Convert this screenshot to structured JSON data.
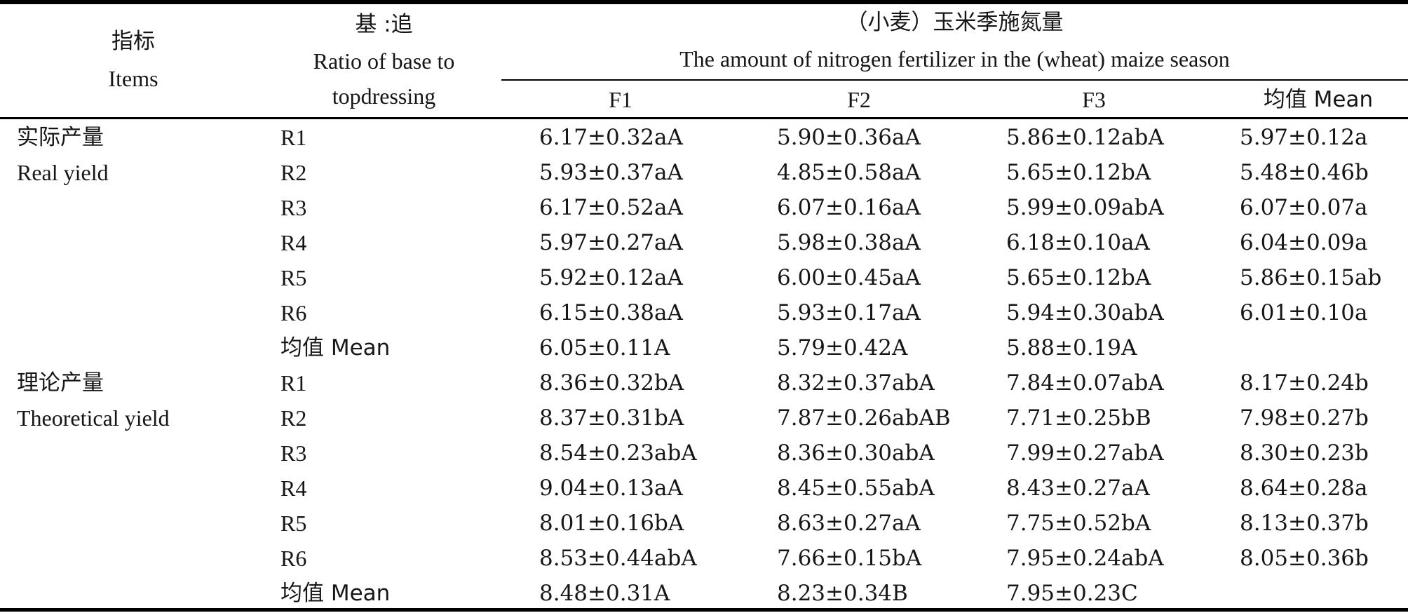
{
  "table": {
    "header": {
      "items_cn": "指标",
      "items_en": "Items",
      "ratio_cn": "基 :追",
      "ratio_en_line1": "Ratio of base to",
      "ratio_en_line2": "topdressing",
      "amount_cn": "（小麦）玉米季施氮量",
      "amount_en": "The amount of nitrogen fertilizer in the (wheat) maize season",
      "columns": [
        "F1",
        "F2",
        "F3",
        "均值 Mean"
      ]
    },
    "groups": [
      {
        "label_cn": "实际产量",
        "label_en": "Real yield",
        "rows": [
          {
            "ratio": "R1",
            "f1": "6.17±0.32aA",
            "f2": "5.90±0.36aA",
            "f3": "5.86±0.12abA",
            "mean": "5.97±0.12a"
          },
          {
            "ratio": "R2",
            "f1": "5.93±0.37aA",
            "f2": "4.85±0.58aA",
            "f3": "5.65±0.12bA",
            "mean": "5.48±0.46b"
          },
          {
            "ratio": "R3",
            "f1": "6.17±0.52aA",
            "f2": "6.07±0.16aA",
            "f3": "5.99±0.09abA",
            "mean": "6.07±0.07a"
          },
          {
            "ratio": "R4",
            "f1": "5.97±0.27aA",
            "f2": "5.98±0.38aA",
            "f3": "6.18±0.10aA",
            "mean": "6.04±0.09a"
          },
          {
            "ratio": "R5",
            "f1": "5.92±0.12aA",
            "f2": "6.00±0.45aA",
            "f3": "5.65±0.12bA",
            "mean": "5.86±0.15ab"
          },
          {
            "ratio": "R6",
            "f1": "6.15±0.38aA",
            "f2": "5.93±0.17aA",
            "f3": "5.94±0.30abA",
            "mean": "6.01±0.10a"
          },
          {
            "ratio": "均值 Mean",
            "f1": "6.05±0.11A",
            "f2": "5.79±0.42A",
            "f3": "5.88±0.19A",
            "mean": ""
          }
        ]
      },
      {
        "label_cn": "理论产量",
        "label_en": "Theoretical yield",
        "rows": [
          {
            "ratio": "R1",
            "f1": "8.36±0.32bA",
            "f2": "8.32±0.37abA",
            "f3": "7.84±0.07abA",
            "mean": "8.17±0.24b"
          },
          {
            "ratio": "R2",
            "f1": "8.37±0.31bA",
            "f2": "7.87±0.26abAB",
            "f3": "7.71±0.25bB",
            "mean": "7.98±0.27b"
          },
          {
            "ratio": "R3",
            "f1": "8.54±0.23abA",
            "f2": "8.36±0.30abA",
            "f3": "7.99±0.27abA",
            "mean": "8.30±0.23b"
          },
          {
            "ratio": "R4",
            "f1": "9.04±0.13aA",
            "f2": "8.45±0.55abA",
            "f3": "8.43±0.27aA",
            "mean": "8.64±0.28a"
          },
          {
            "ratio": "R5",
            "f1": "8.01±0.16bA",
            "f2": "8.63±0.27aA",
            "f3": "7.75±0.52bA",
            "mean": "8.13±0.37b"
          },
          {
            "ratio": "R6",
            "f1": "8.53±0.44abA",
            "f2": "7.66±0.15bA",
            "f3": "7.95±0.24abA",
            "mean": "8.05±0.36b"
          },
          {
            "ratio": "均值 Mean",
            "f1": "8.48±0.31A",
            "f2": "8.23±0.34B",
            "f3": "7.95±0.23C",
            "mean": ""
          }
        ]
      }
    ]
  }
}
